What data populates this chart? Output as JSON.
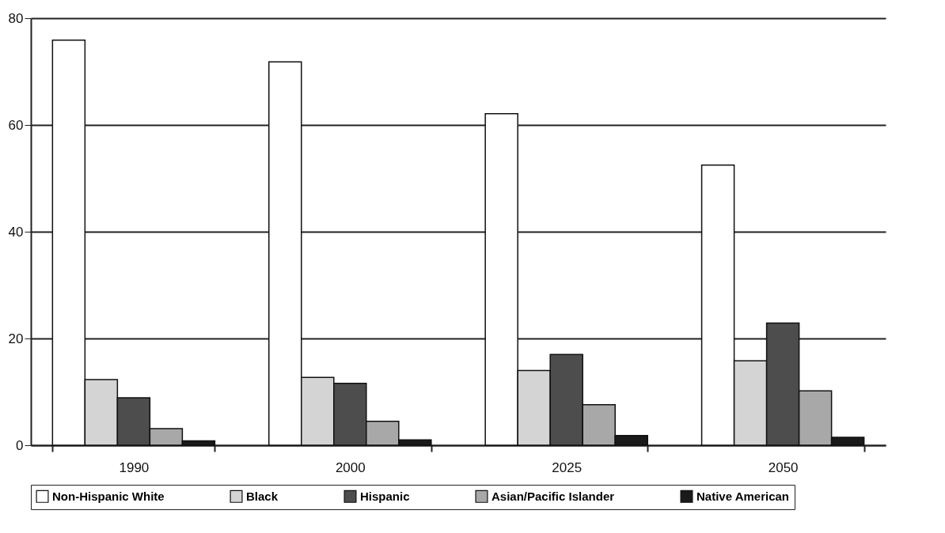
{
  "chart_data": {
    "type": "bar",
    "categories": [
      "1990",
      "2000",
      "2025",
      "2050"
    ],
    "series": [
      {
        "name": "Non-Hispanic White",
        "color": "#ffffff",
        "values": [
          75.9,
          71.8,
          62.1,
          52.5
        ]
      },
      {
        "name": "Black",
        "color": "#d4d4d4",
        "values": [
          12.3,
          12.7,
          14.0,
          15.8
        ]
      },
      {
        "name": "Hispanic",
        "color": "#4d4d4d",
        "values": [
          8.9,
          11.6,
          17.0,
          22.9
        ]
      },
      {
        "name": "Asian/Pacific Islander",
        "color": "#a8a8a8",
        "values": [
          3.1,
          4.5,
          7.6,
          10.2
        ]
      },
      {
        "name": "Native American",
        "color": "#1a1a1a",
        "values": [
          0.8,
          1.0,
          1.8,
          1.5
        ]
      }
    ],
    "ylim": [
      0,
      80
    ],
    "yticks": [
      0,
      20,
      40,
      60,
      80
    ],
    "grid": "y",
    "legend": "bottom"
  }
}
